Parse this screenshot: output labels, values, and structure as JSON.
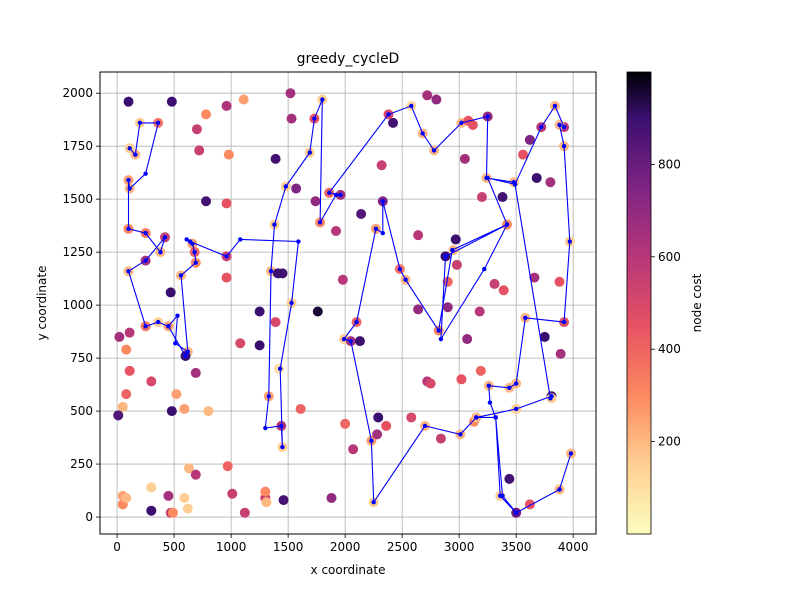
{
  "chart_data": {
    "type": "scatter",
    "title": "greedy_cycleD",
    "xlabel": "x coordinate",
    "ylabel": "y coordinate",
    "xlim": [
      -150,
      4200
    ],
    "ylim": [
      -80,
      2100
    ],
    "xticks": [
      0,
      500,
      1000,
      1500,
      2000,
      2500,
      3000,
      3500,
      4000
    ],
    "yticks": [
      0,
      250,
      500,
      750,
      1000,
      1250,
      1500,
      1750,
      2000
    ],
    "grid": true,
    "colorbar": {
      "label": "node cost",
      "colormap": "magma_r",
      "range": [
        0,
        1000
      ],
      "ticks": [
        200,
        400,
        600,
        800
      ]
    },
    "route_color": "#0000ff",
    "nodes": [
      [
        100,
        1960,
        900
      ],
      [
        480,
        1960,
        900
      ],
      [
        780,
        1900,
        300
      ],
      [
        960,
        1940,
        620
      ],
      [
        1110,
        1970,
        250
      ],
      [
        1520,
        2000,
        650
      ],
      [
        1800,
        1970,
        150
      ],
      [
        2380,
        1900,
        500
      ],
      [
        2580,
        1940,
        120
      ],
      [
        2720,
        1990,
        650
      ],
      [
        2800,
        1970,
        700
      ],
      [
        200,
        1860,
        150
      ],
      [
        360,
        1860,
        350
      ],
      [
        1530,
        1880,
        650
      ],
      [
        1730,
        1880,
        450
      ],
      [
        2420,
        1860,
        880
      ],
      [
        3020,
        1860,
        200
      ],
      [
        3080,
        1870,
        450
      ],
      [
        3120,
        1850,
        450
      ],
      [
        3250,
        1890,
        700
      ],
      [
        3840,
        1940,
        200
      ],
      [
        3920,
        1840,
        600
      ],
      [
        3880,
        1850,
        200
      ],
      [
        110,
        1740,
        150
      ],
      [
        160,
        1710,
        200
      ],
      [
        700,
        1830,
        550
      ],
      [
        720,
        1730,
        550
      ],
      [
        980,
        1710,
        300
      ],
      [
        1390,
        1690,
        880
      ],
      [
        1690,
        1720,
        150
      ],
      [
        2680,
        1810,
        200
      ],
      [
        2780,
        1730,
        200
      ],
      [
        3050,
        1690,
        650
      ],
      [
        3620,
        1780,
        750
      ],
      [
        3720,
        1840,
        600
      ],
      [
        3920,
        1750,
        200
      ],
      [
        100,
        1590,
        250
      ],
      [
        110,
        1550,
        200
      ],
      [
        780,
        1490,
        880
      ],
      [
        960,
        1480,
        450
      ],
      [
        1480,
        1560,
        150
      ],
      [
        1570,
        1550,
        750
      ],
      [
        1740,
        1490,
        700
      ],
      [
        1860,
        1530,
        400
      ],
      [
        1960,
        1520,
        650
      ],
      [
        2320,
        1660,
        550
      ],
      [
        2330,
        1490,
        750
      ],
      [
        3240,
        1600,
        200
      ],
      [
        3200,
        1510,
        550
      ],
      [
        3380,
        1510,
        880
      ],
      [
        3480,
        1580,
        200
      ],
      [
        3680,
        1600,
        900
      ],
      [
        3560,
        1710,
        450
      ],
      [
        3800,
        1580,
        650
      ],
      [
        100,
        1360,
        300
      ],
      [
        250,
        1340,
        350
      ],
      [
        420,
        1320,
        550
      ],
      [
        380,
        1250,
        200
      ],
      [
        660,
        1290,
        250
      ],
      [
        680,
        1250,
        400
      ],
      [
        1380,
        1380,
        150
      ],
      [
        1780,
        1390,
        300
      ],
      [
        1920,
        1350,
        600
      ],
      [
        2140,
        1430,
        850
      ],
      [
        2270,
        1360,
        250
      ],
      [
        2640,
        1330,
        600
      ],
      [
        2950,
        1260,
        200
      ],
      [
        2970,
        1310,
        900
      ],
      [
        3420,
        1380,
        300
      ],
      [
        3970,
        1300,
        150
      ],
      [
        100,
        1160,
        200
      ],
      [
        250,
        1210,
        650
      ],
      [
        560,
        1140,
        200
      ],
      [
        690,
        1200,
        300
      ],
      [
        960,
        1130,
        450
      ],
      [
        960,
        1230,
        550
      ],
      [
        1350,
        1160,
        200
      ],
      [
        1450,
        1150,
        880
      ],
      [
        1410,
        1150,
        900
      ],
      [
        1980,
        1120,
        600
      ],
      [
        2480,
        1170,
        350
      ],
      [
        2530,
        1120,
        200
      ],
      [
        2880,
        1230,
        900
      ],
      [
        2980,
        1190,
        550
      ],
      [
        2900,
        1110,
        400
      ],
      [
        3310,
        1100,
        550
      ],
      [
        3390,
        1070,
        450
      ],
      [
        3660,
        1130,
        650
      ],
      [
        3880,
        1110,
        450
      ],
      [
        470,
        1060,
        900
      ],
      [
        1250,
        970,
        900
      ],
      [
        1530,
        1010,
        150
      ],
      [
        1760,
        970,
        950
      ],
      [
        2100,
        920,
        400
      ],
      [
        2640,
        980,
        700
      ],
      [
        2900,
        990,
        700
      ],
      [
        3180,
        970,
        600
      ],
      [
        3580,
        940,
        200
      ],
      [
        3920,
        920,
        450
      ],
      [
        250,
        900,
        350
      ],
      [
        360,
        920,
        150
      ],
      [
        450,
        900,
        250
      ],
      [
        110,
        870,
        600
      ],
      [
        20,
        850,
        650
      ],
      [
        80,
        790,
        300
      ],
      [
        620,
        780,
        200
      ],
      [
        600,
        760,
        900
      ],
      [
        1080,
        820,
        500
      ],
      [
        1250,
        810,
        900
      ],
      [
        1390,
        920,
        500
      ],
      [
        1990,
        840,
        150
      ],
      [
        2050,
        830,
        650
      ],
      [
        2130,
        830,
        900
      ],
      [
        2820,
        880,
        300
      ],
      [
        3070,
        840,
        700
      ],
      [
        3750,
        850,
        900
      ],
      [
        3890,
        770,
        650
      ],
      [
        110,
        690,
        450
      ],
      [
        300,
        640,
        500
      ],
      [
        690,
        680,
        650
      ],
      [
        1420,
        700,
        100
      ],
      [
        2720,
        640,
        600
      ],
      [
        2750,
        630,
        500
      ],
      [
        3020,
        650,
        450
      ],
      [
        3190,
        690,
        400
      ],
      [
        3260,
        620,
        200
      ],
      [
        3440,
        610,
        200
      ],
      [
        3500,
        630,
        200
      ],
      [
        3810,
        570,
        880
      ],
      [
        3810,
        560,
        150
      ],
      [
        80,
        580,
        400
      ],
      [
        50,
        520,
        200
      ],
      [
        10,
        480,
        850
      ],
      [
        480,
        500,
        900
      ],
      [
        520,
        580,
        250
      ],
      [
        590,
        510,
        250
      ],
      [
        800,
        500,
        200
      ],
      [
        1330,
        570,
        250
      ],
      [
        1440,
        430,
        600
      ],
      [
        1450,
        330,
        150
      ],
      [
        1610,
        510,
        400
      ],
      [
        2000,
        440,
        400
      ],
      [
        2290,
        470,
        900
      ],
      [
        2360,
        430,
        450
      ],
      [
        2580,
        470,
        500
      ],
      [
        2700,
        430,
        200
      ],
      [
        2840,
        370,
        550
      ],
      [
        3010,
        390,
        200
      ],
      [
        3130,
        450,
        300
      ],
      [
        3150,
        470,
        200
      ],
      [
        3500,
        510,
        150
      ],
      [
        3980,
        300,
        200
      ],
      [
        630,
        230,
        200
      ],
      [
        690,
        200,
        600
      ],
      [
        970,
        240,
        400
      ],
      [
        1010,
        110,
        550
      ],
      [
        1120,
        20,
        550
      ],
      [
        1300,
        90,
        550
      ],
      [
        1300,
        120,
        300
      ],
      [
        1310,
        70,
        200
      ],
      [
        1460,
        80,
        880
      ],
      [
        1880,
        90,
        700
      ],
      [
        2070,
        320,
        600
      ],
      [
        2230,
        360,
        250
      ],
      [
        2250,
        70,
        150
      ],
      [
        2280,
        390,
        650
      ],
      [
        3360,
        100,
        150
      ],
      [
        3440,
        180,
        880
      ],
      [
        3500,
        20,
        800
      ],
      [
        3620,
        60,
        450
      ],
      [
        3880,
        130,
        200
      ],
      [
        50,
        100,
        250
      ],
      [
        50,
        60,
        300
      ],
      [
        80,
        90,
        200
      ],
      [
        300,
        140,
        150
      ],
      [
        300,
        30,
        900
      ],
      [
        450,
        100,
        650
      ],
      [
        470,
        20,
        550
      ],
      [
        490,
        20,
        300
      ],
      [
        590,
        90,
        150
      ],
      [
        620,
        40,
        150
      ]
    ],
    "route": [
      [
        110,
        1740
      ],
      [
        160,
        1710
      ],
      [
        200,
        1860
      ],
      [
        360,
        1860
      ],
      [
        250,
        1620
      ],
      [
        110,
        1550
      ],
      [
        100,
        1590
      ],
      [
        100,
        1360
      ],
      [
        250,
        1340
      ],
      [
        380,
        1250
      ],
      [
        420,
        1320
      ],
      [
        250,
        1210
      ],
      [
        100,
        1160
      ],
      [
        250,
        900
      ],
      [
        360,
        920
      ],
      [
        450,
        900
      ],
      [
        600,
        760
      ],
      [
        450,
        900
      ],
      [
        530,
        950
      ],
      [
        510,
        820
      ],
      [
        620,
        780
      ],
      [
        560,
        1140
      ],
      [
        690,
        1200
      ],
      [
        680,
        1250
      ],
      [
        660,
        1290
      ],
      [
        610,
        1310
      ],
      [
        640,
        1300
      ],
      [
        960,
        1230
      ],
      [
        1080,
        1310
      ],
      [
        1590,
        1300
      ],
      [
        1530,
        1010
      ],
      [
        1430,
        700
      ],
      [
        1450,
        330
      ],
      [
        1440,
        430
      ],
      [
        1300,
        420
      ],
      [
        1330,
        570
      ],
      [
        1350,
        1160
      ],
      [
        1380,
        1380
      ],
      [
        1480,
        1560
      ],
      [
        1690,
        1720
      ],
      [
        1730,
        1880
      ],
      [
        1800,
        1970
      ],
      [
        1780,
        1390
      ],
      [
        1920,
        1520
      ],
      [
        1960,
        1520
      ],
      [
        1860,
        1530
      ],
      [
        2380,
        1900
      ],
      [
        2580,
        1940
      ],
      [
        2680,
        1810
      ],
      [
        2780,
        1730
      ],
      [
        3020,
        1860
      ],
      [
        3250,
        1890
      ],
      [
        3240,
        1600
      ],
      [
        3480,
        1580
      ],
      [
        3490,
        1570
      ],
      [
        3720,
        1840
      ],
      [
        3840,
        1940
      ],
      [
        3920,
        1840
      ],
      [
        3880,
        1850
      ],
      [
        3920,
        1750
      ],
      [
        3970,
        1300
      ],
      [
        3920,
        920
      ],
      [
        3580,
        940
      ],
      [
        3500,
        630
      ],
      [
        3440,
        610
      ],
      [
        3260,
        620
      ],
      [
        3270,
        540
      ],
      [
        3320,
        470
      ],
      [
        3150,
        470
      ],
      [
        3010,
        390
      ],
      [
        2700,
        430
      ],
      [
        2250,
        70
      ],
      [
        2230,
        360
      ],
      [
        2050,
        830
      ],
      [
        1990,
        840
      ],
      [
        2100,
        920
      ],
      [
        2270,
        1360
      ],
      [
        2330,
        1340
      ],
      [
        2330,
        1490
      ],
      [
        2480,
        1170
      ],
      [
        2530,
        1120
      ],
      [
        2820,
        880
      ],
      [
        2940,
        1260
      ],
      [
        3420,
        1380
      ],
      [
        3220,
        1170
      ],
      [
        2840,
        840
      ],
      [
        2880,
        1230
      ],
      [
        3420,
        1380
      ],
      [
        3250,
        1600
      ],
      [
        3490,
        1570
      ],
      [
        3800,
        560
      ],
      [
        3810,
        570
      ],
      [
        3500,
        510
      ],
      [
        3150,
        470
      ],
      [
        3320,
        470
      ],
      [
        3380,
        100
      ],
      [
        3500,
        20
      ],
      [
        3880,
        130
      ],
      [
        3980,
        300
      ],
      [
        3880,
        130
      ],
      [
        3500,
        20
      ],
      [
        3360,
        100
      ],
      [
        3320,
        470
      ]
    ]
  }
}
